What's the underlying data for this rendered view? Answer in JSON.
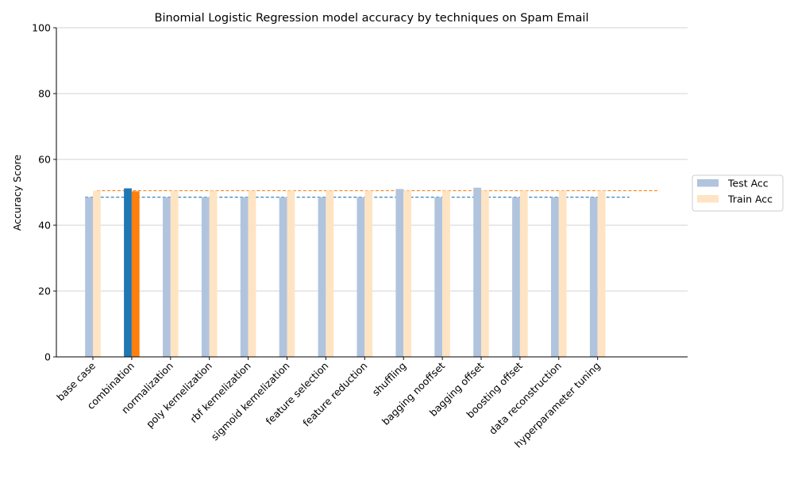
{
  "chart_data": {
    "type": "bar",
    "title": "Binomial Logistic Regression model accuracy by techniques on Spam Email",
    "xlabel": "",
    "ylabel": "Accuracy Score",
    "ylim": [
      0,
      100
    ],
    "yticks": [
      0,
      20,
      40,
      60,
      80,
      100
    ],
    "grid": "horizontal",
    "legend_position": "right",
    "categories": [
      "base case",
      "combination",
      "normalization",
      "poly kernelization",
      "rbf kernelization",
      "sigmoid kernelization",
      "feature selection",
      "feature reduction",
      "shuffling",
      "bagging nooffset",
      "bagging offset",
      "boosting offset",
      "data reconstruction",
      "hyperparameter tuning"
    ],
    "highlight_category": "combination",
    "series": [
      {
        "name": "Test Acc",
        "color": "#b0c4de",
        "highlight_color": "#1f77b4",
        "values": [
          48.5,
          51.2,
          48.5,
          48.5,
          48.5,
          48.5,
          48.5,
          48.5,
          51.0,
          48.5,
          51.4,
          48.5,
          48.5,
          48.5
        ]
      },
      {
        "name": "Train Acc",
        "color": "#ffe4c4",
        "highlight_color": "#ff7f0e",
        "values": [
          50.5,
          50.3,
          50.5,
          50.5,
          50.5,
          50.5,
          50.5,
          50.5,
          50.5,
          50.5,
          50.5,
          50.5,
          50.5,
          50.5
        ]
      }
    ],
    "reference_lines": [
      {
        "series": "Test Acc",
        "value": 48.5,
        "color": "#1f77b4"
      },
      {
        "series": "Train Acc",
        "value": 50.5,
        "color": "#ff7f0e"
      }
    ]
  }
}
